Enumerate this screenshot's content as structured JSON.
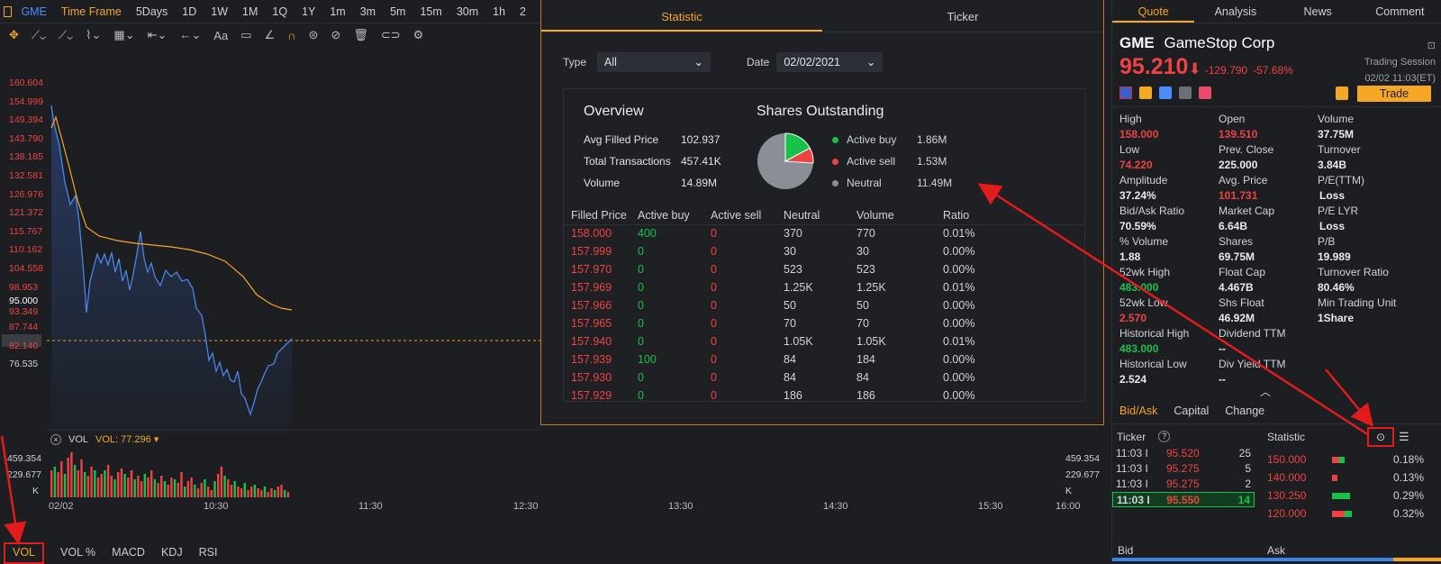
{
  "topbar": {
    "symbol": "GME",
    "timeframe_label": "Time Frame",
    "periods": [
      "5Days",
      "1D",
      "1W",
      "1M",
      "1Q",
      "1Y",
      "1m",
      "3m",
      "5m",
      "15m",
      "30m",
      "1h",
      "2"
    ]
  },
  "chart": {
    "price_ticks": [
      "160.604",
      "154.999",
      "149.394",
      "143.790",
      "138.185",
      "132.581",
      "126.976",
      "121.372",
      "115.767",
      "110.162",
      "104.558",
      "98.953",
      "95.000",
      "93.349",
      "87.744",
      "82.140",
      "76.535"
    ],
    "current_price": "95.000",
    "vol_label": "VOL",
    "vol_value": "VOL: 77.296 ▾",
    "vol_ticks": [
      "459.354",
      "229.677",
      "K"
    ],
    "x_ticks": [
      "02/02",
      "10:30",
      "11:30",
      "12:30",
      "13:30",
      "14:30",
      "15:30",
      "16:00"
    ],
    "bottom_tabs": [
      "VOL",
      "VOL %",
      "MACD",
      "KDJ",
      "RSI"
    ]
  },
  "popup": {
    "tabs": [
      "Statistic",
      "Ticker"
    ],
    "type_label": "Type",
    "type_value": "All",
    "date_label": "Date",
    "date_value": "02/02/2021",
    "overview_title": "Overview",
    "overview": [
      {
        "k": "Avg Filled Price",
        "v": "102.937"
      },
      {
        "k": "Total Transactions",
        "v": "457.41K"
      },
      {
        "k": "Volume",
        "v": "14.89M"
      }
    ],
    "shares_title": "Shares Outstanding",
    "legend": [
      {
        "k": "Active buy",
        "v": "1.86M",
        "color": "#17c24a"
      },
      {
        "k": "Active sell",
        "v": "1.53M",
        "color": "#ef4343"
      },
      {
        "k": "Neutral",
        "v": "11.49M",
        "color": "#8a8e96"
      }
    ],
    "headers": [
      "Filled Price",
      "Active buy",
      "Active sell",
      "Neutral",
      "Volume",
      "Ratio"
    ],
    "rows": [
      [
        "158.000",
        "400",
        "0",
        "370",
        "770",
        "0.01%"
      ],
      [
        "157.999",
        "0",
        "0",
        "30",
        "30",
        "0.00%"
      ],
      [
        "157.970",
        "0",
        "0",
        "523",
        "523",
        "0.00%"
      ],
      [
        "157.969",
        "0",
        "0",
        "1.25K",
        "1.25K",
        "0.01%"
      ],
      [
        "157.966",
        "0",
        "0",
        "50",
        "50",
        "0.00%"
      ],
      [
        "157.965",
        "0",
        "0",
        "70",
        "70",
        "0.00%"
      ],
      [
        "157.940",
        "0",
        "0",
        "1.05K",
        "1.05K",
        "0.01%"
      ],
      [
        "157.939",
        "100",
        "0",
        "84",
        "184",
        "0.00%"
      ],
      [
        "157.930",
        "0",
        "0",
        "84",
        "84",
        "0.00%"
      ],
      [
        "157.929",
        "0",
        "0",
        "186",
        "186",
        "0.00%"
      ]
    ]
  },
  "quote": {
    "tabs": [
      "Quote",
      "Analysis",
      "News",
      "Comment"
    ],
    "ticker": "GME",
    "name": "GameStop Corp",
    "price": "95.210",
    "arrow": "⬇",
    "change": "-129.790",
    "pct": "-57.68%",
    "session": "Trading Session",
    "session_time": "02/02 11:03(ET)",
    "trade": "Trade",
    "stats": [
      [
        "High",
        "Open",
        "Volume"
      ],
      [
        "158.000",
        "139.510",
        "37.75M"
      ],
      [
        "Low",
        "Prev. Close",
        "Turnover"
      ],
      [
        "74.220",
        "225.000",
        "3.84B"
      ],
      [
        "Amplitude",
        "Avg. Price",
        "P/E(TTM)"
      ],
      [
        "37.24%",
        "101.731",
        "Loss"
      ],
      [
        "Bid/Ask Ratio",
        "Market Cap",
        "P/E LYR"
      ],
      [
        "70.59%",
        "6.64B",
        "Loss"
      ],
      [
        "% Volume",
        "Shares",
        "P/B"
      ],
      [
        "1.88",
        "69.75M",
        "19.989"
      ],
      [
        "52wk High",
        "Float Cap",
        "Turnover Ratio"
      ],
      [
        "483.000",
        "4.467B",
        "80.46%"
      ],
      [
        "52wk Low",
        "Shs Float",
        "Min Trading Unit"
      ],
      [
        "2.570",
        "46.92M",
        "1Share"
      ],
      [
        "Historical High",
        "Dividend TTM",
        ""
      ],
      [
        "483.000",
        "--",
        ""
      ],
      [
        "Historical Low",
        "Div Yield TTM",
        ""
      ],
      [
        "2.524",
        "--",
        ""
      ]
    ],
    "subtabs": [
      "Bid/Ask",
      "Capital",
      "Change"
    ],
    "ticker_label": "Ticker",
    "statistic_label": "Statistic",
    "ticks": [
      [
        "11:03 I",
        "95.520",
        "25"
      ],
      [
        "11:03 I",
        "95.275",
        "5"
      ],
      [
        "11:03 I",
        "95.275",
        "2"
      ],
      [
        "11:03 I",
        "95.550",
        "14"
      ]
    ],
    "stat_rows": [
      [
        "150.000",
        "0.18%"
      ],
      [
        "140.000",
        "0.13%"
      ],
      [
        "130.250",
        "0.29%"
      ],
      [
        "120.000",
        "0.32%"
      ]
    ],
    "bid_label": "Bid",
    "ask_label": "Ask",
    "bid_pct": "85.29%",
    "ask_pct": "14.71%"
  }
}
